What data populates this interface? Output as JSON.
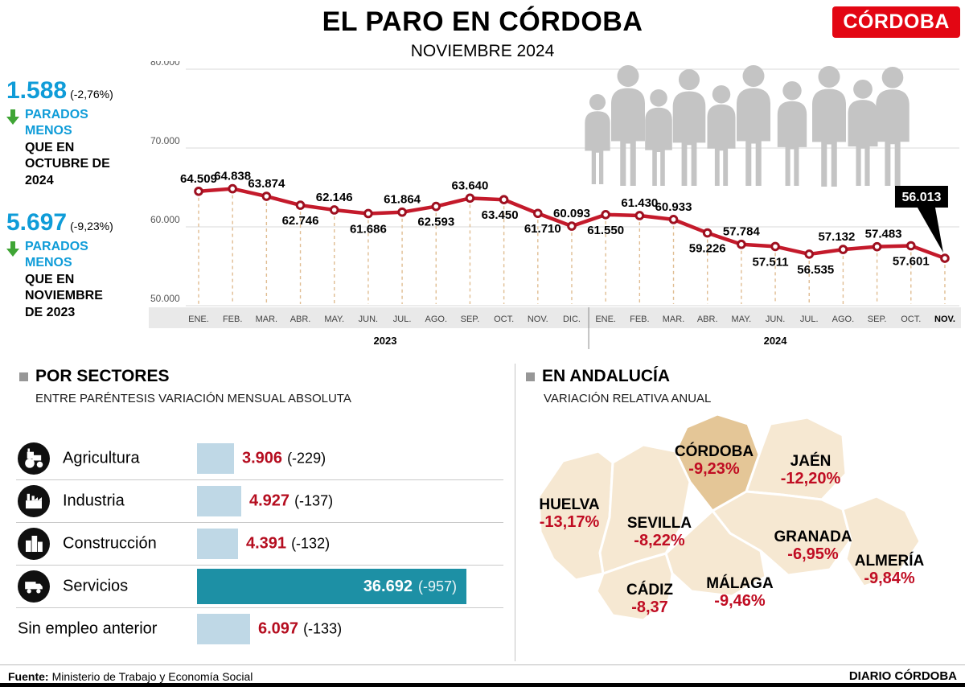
{
  "header": {
    "title": "EL PARO EN CÓRDOBA",
    "subtitle": "NOVIEMBRE 2024",
    "logo": "CÓRDOBA"
  },
  "stats": [
    {
      "value": "1.588",
      "pct": "(-2,76%)",
      "highlight": "PARADOS MENOS",
      "rest": "QUE EN OCTUBRE DE 2024"
    },
    {
      "value": "5.697",
      "pct": "(-9,23%)",
      "highlight": "PARADOS MENOS",
      "rest": "QUE EN NOVIEMBRE DE 2023"
    }
  ],
  "chart_data": {
    "type": "line",
    "title": "EL PARO EN CÓRDOBA",
    "subtitle": "NOVIEMBRE 2024",
    "x": [
      "ENE.",
      "FEB.",
      "MAR.",
      "ABR.",
      "MAY.",
      "JUN.",
      "JUL.",
      "AGO.",
      "SEP.",
      "OCT.",
      "NOV.",
      "DIC.",
      "ENE.",
      "FEB.",
      "MAR.",
      "ABR.",
      "MAY.",
      "JUN.",
      "JUL.",
      "AGO.",
      "SEP.",
      "OCT.",
      "NOV."
    ],
    "year_groups": [
      {
        "label": "2023",
        "from": 0,
        "to": 11
      },
      {
        "label": "2024",
        "from": 12,
        "to": 22
      }
    ],
    "series": [
      {
        "name": "Parados",
        "values": [
          64509,
          64838,
          63874,
          62746,
          62146,
          61686,
          61864,
          62593,
          63640,
          63450,
          61710,
          60093,
          61550,
          61430,
          60933,
          59226,
          57784,
          57511,
          56535,
          57132,
          57483,
          57601,
          56013
        ]
      }
    ],
    "labels": [
      "64.509",
      "64.838",
      "63.874",
      "62.746",
      "62.146",
      "61.686",
      "61.864",
      "62.593",
      "63.640",
      "63.450",
      "61.710",
      "60.093",
      "61.550",
      "61.430",
      "60.933",
      "59.226",
      "57.784",
      "57.511",
      "56.535",
      "57.132",
      "57.483",
      "57.601",
      "56.013"
    ],
    "label_pos": [
      "above",
      "above",
      "above",
      "below",
      "above",
      "below",
      "above",
      "below",
      "above",
      "below",
      "below",
      "above",
      "below",
      "above",
      "above",
      "below",
      "above",
      "below",
      "below",
      "above",
      "above",
      "below",
      "callout"
    ],
    "callout": {
      "index": 22,
      "label": "56.013"
    },
    "ylim": [
      50000,
      80000
    ],
    "yticks": [
      "80.000",
      "70.000",
      "60.000",
      "50.000"
    ],
    "grid": true,
    "legend": false
  },
  "sectors": {
    "title": "POR SECTORES",
    "subtitle": "ENTRE PARÉNTESIS VARIACIÓN MENSUAL ABSOLUTA",
    "items": [
      {
        "name": "Agricultura",
        "icon": "tractor-icon",
        "value": "3.906",
        "value_num": 3906,
        "change": "(-229)",
        "highlight": false
      },
      {
        "name": "Industria",
        "icon": "factory-icon",
        "value": "4.927",
        "value_num": 4927,
        "change": "(-137)",
        "highlight": false
      },
      {
        "name": "Construcción",
        "icon": "buildings-icon",
        "value": "4.391",
        "value_num": 4391,
        "change": "(-132)",
        "highlight": false
      },
      {
        "name": "Servicios",
        "icon": "truck-icon",
        "value": "36.692",
        "value_num": 36692,
        "change": "(-957)",
        "highlight": true
      },
      {
        "name": "Sin empleo anterior",
        "icon": null,
        "value": "6.097",
        "value_num": 6097,
        "change": "(-133)",
        "highlight": false
      }
    ]
  },
  "andalucia": {
    "title": "EN ANDALUCÍA",
    "subtitle": "VARIACIÓN RELATIVA ANUAL",
    "provinces": [
      {
        "id": "huelva",
        "name": "HUELVA",
        "value": "-13,17%"
      },
      {
        "id": "sevilla",
        "name": "SEVILLA",
        "value": "-8,22%"
      },
      {
        "id": "cordoba",
        "name": "CÓRDOBA",
        "value": "-9,23%"
      },
      {
        "id": "jaen",
        "name": "JAÉN",
        "value": "-12,20%"
      },
      {
        "id": "granada",
        "name": "GRANADA",
        "value": "-6,95%"
      },
      {
        "id": "almeria",
        "name": "ALMERÍA",
        "value": "-9,84%"
      },
      {
        "id": "cadiz",
        "name": "CÁDIZ",
        "value": "-8,37"
      },
      {
        "id": "malaga",
        "name": "MÁLAGA",
        "value": "-9,46%"
      }
    ]
  },
  "footer": {
    "source_label": "Fuente:",
    "source": "Ministerio de Trabajo y Economía Social",
    "credit": "DIARIO CÓRDOBA"
  },
  "colors": {
    "accent_blue": "#0f9cd8",
    "arrow_green": "#3fa535",
    "line_red": "#c41a2b",
    "marker_red": "#9e1020",
    "dark_red": "#b50d1f",
    "logo_red": "#e30613",
    "teal": "#1d90a5",
    "bar_blue": "#bfd8e6",
    "map_fill": "#f6e8d2",
    "map_highlight": "#e4c697",
    "silhouette": "#c4c4c4"
  }
}
